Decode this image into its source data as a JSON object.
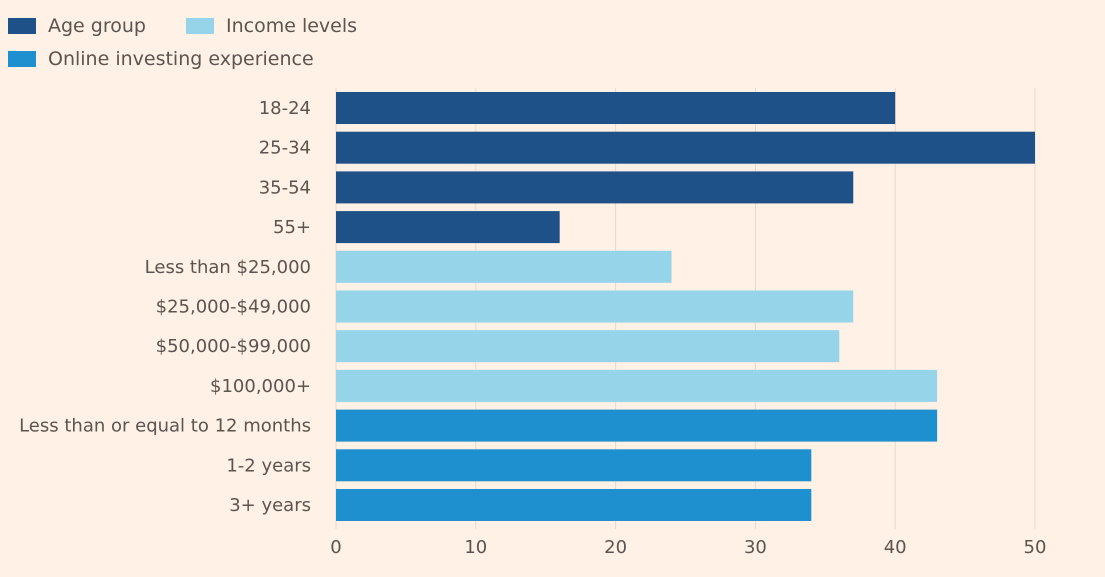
{
  "chart_data": {
    "type": "bar",
    "orientation": "horizontal",
    "title": "",
    "xlabel": "",
    "ylabel": "",
    "xlim": [
      0,
      55
    ],
    "xticks": [
      0,
      10,
      20,
      30,
      40,
      50
    ],
    "grid": true,
    "legend_position": "top-left",
    "colors": {
      "age": "#1f5189",
      "income": "#96d4ea",
      "experience": "#1e8fcf",
      "background": "#fff1e5",
      "grid": "#e6dad0",
      "text": "#5a5551"
    },
    "legend": [
      {
        "label": "Age group",
        "group": "age"
      },
      {
        "label": "Income levels",
        "group": "income"
      },
      {
        "label": "Online investing experience",
        "group": "experience"
      }
    ],
    "bars": [
      {
        "label": "18-24",
        "value": 40,
        "group": "age"
      },
      {
        "label": "25-34",
        "value": 50,
        "group": "age"
      },
      {
        "label": "35-54",
        "value": 37,
        "group": "age"
      },
      {
        "label": "55+",
        "value": 16,
        "group": "age"
      },
      {
        "label": "Less than $25,000",
        "value": 24,
        "group": "income"
      },
      {
        "label": "$25,000-$49,000",
        "value": 37,
        "group": "income"
      },
      {
        "label": "$50,000-$99,000",
        "value": 36,
        "group": "income"
      },
      {
        "label": "$100,000+",
        "value": 43,
        "group": "income"
      },
      {
        "label": "Less than or equal to 12 months",
        "value": 43,
        "group": "experience"
      },
      {
        "label": "1-2 years",
        "value": 34,
        "group": "experience"
      },
      {
        "label": "3+ years",
        "value": 34,
        "group": "experience"
      }
    ]
  }
}
